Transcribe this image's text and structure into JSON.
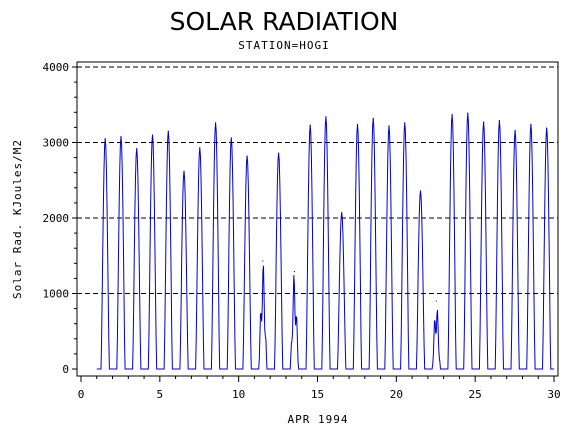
{
  "chart_data": {
    "type": "line",
    "title": "SOLAR RADIATION",
    "subtitle": "STATION=HOGI",
    "xlabel": "APR 1994",
    "ylabel": "Solar Rad. KJoules/M2",
    "xlim": [
      0,
      30
    ],
    "ylim": [
      0,
      4000
    ],
    "x_ticks": [
      0,
      5,
      10,
      15,
      20,
      25,
      30
    ],
    "y_ticks": [
      0,
      1000,
      2000,
      3000,
      4000
    ],
    "grid": "horizontal-dashed",
    "line_color": "#0000cc",
    "daily_peaks": [
      {
        "day": 1,
        "peak": 3050
      },
      {
        "day": 2,
        "peak": 3080
      },
      {
        "day": 3,
        "peak": 2920
      },
      {
        "day": 4,
        "peak": 3100
      },
      {
        "day": 5,
        "peak": 3150
      },
      {
        "day": 6,
        "peak": 2620
      },
      {
        "day": 7,
        "peak": 2930
      },
      {
        "day": 8,
        "peak": 3260
      },
      {
        "day": 9,
        "peak": 3060
      },
      {
        "day": 10,
        "peak": 2820
      },
      {
        "day": 11,
        "peak": 1430
      },
      {
        "day": 12,
        "peak": 2860
      },
      {
        "day": 13,
        "peak": 1290
      },
      {
        "day": 14,
        "peak": 3230
      },
      {
        "day": 15,
        "peak": 3340
      },
      {
        "day": 16,
        "peak": 2070
      },
      {
        "day": 17,
        "peak": 3240
      },
      {
        "day": 18,
        "peak": 3320
      },
      {
        "day": 19,
        "peak": 3220
      },
      {
        "day": 20,
        "peak": 3260
      },
      {
        "day": 21,
        "peak": 2360
      },
      {
        "day": 22,
        "peak": 900
      },
      {
        "day": 23,
        "peak": 3370
      },
      {
        "day": 24,
        "peak": 3390
      },
      {
        "day": 25,
        "peak": 3270
      },
      {
        "day": 26,
        "peak": 3290
      },
      {
        "day": 27,
        "peak": 3160
      },
      {
        "day": 28,
        "peak": 3240
      },
      {
        "day": 29,
        "peak": 3190
      }
    ]
  }
}
